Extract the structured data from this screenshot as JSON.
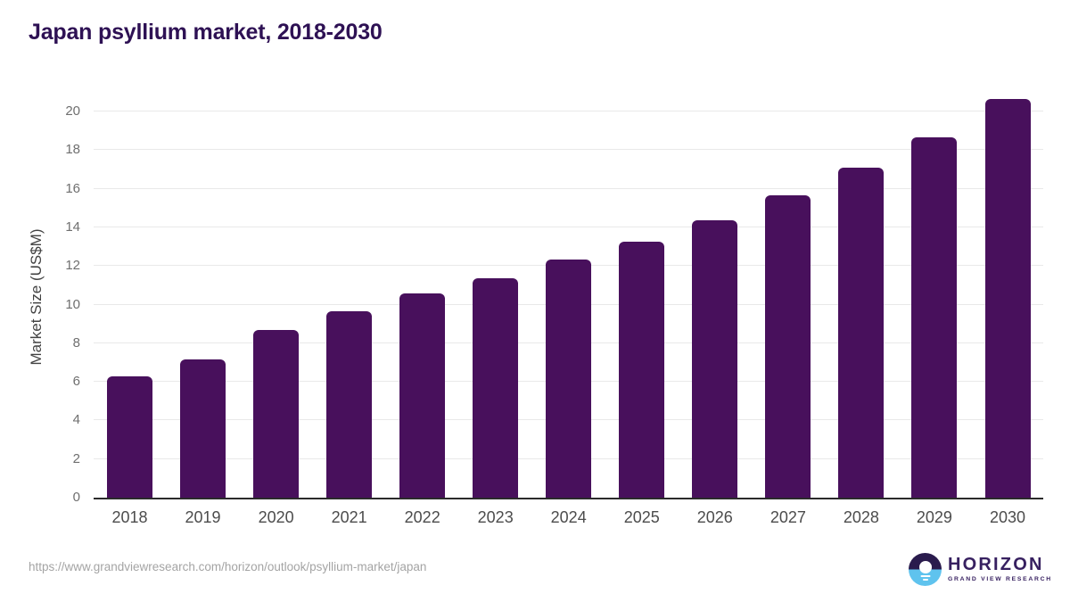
{
  "header": {
    "title": "Japan psyllium market, 2018-2030"
  },
  "chart_data": {
    "type": "bar",
    "title": "Japan psyllium market, 2018-2030",
    "categories": [
      "2018",
      "2019",
      "2020",
      "2021",
      "2022",
      "2023",
      "2024",
      "2025",
      "2026",
      "2027",
      "2028",
      "2029",
      "2030"
    ],
    "values": [
      6.3,
      7.15,
      8.7,
      9.65,
      10.6,
      11.35,
      12.35,
      13.25,
      14.35,
      15.65,
      17.1,
      18.65,
      20.65
    ],
    "xlabel": "",
    "ylabel": "Market Size (US$M)",
    "ylim": [
      0,
      20
    ],
    "yticks": [
      0,
      2,
      4,
      6,
      8,
      10,
      12,
      14,
      16,
      18,
      20
    ],
    "grid": true,
    "legend": "none",
    "bar_color": "#48105c"
  },
  "footer": {
    "source_url": "https://www.grandviewresearch.com/horizon/outlook/psyllium-market/japan",
    "logo": {
      "wordmark": "HORIZON",
      "subtitle": "GRAND VIEW RESEARCH"
    }
  },
  "colors": {
    "title-color": "#2e1154",
    "bar-color": "#48105c",
    "axis-color": "#2b2b2b",
    "grid-color": "#e9e9e9",
    "ytick-color": "#6f6f6f",
    "xtick-color": "#4c4c4c",
    "ylabel-color": "#424242",
    "url-color": "#a4a4a4",
    "logo-dark": "#2a1b4d",
    "logo-blue": "#5fc3ee",
    "logo-text": "#372060"
  }
}
